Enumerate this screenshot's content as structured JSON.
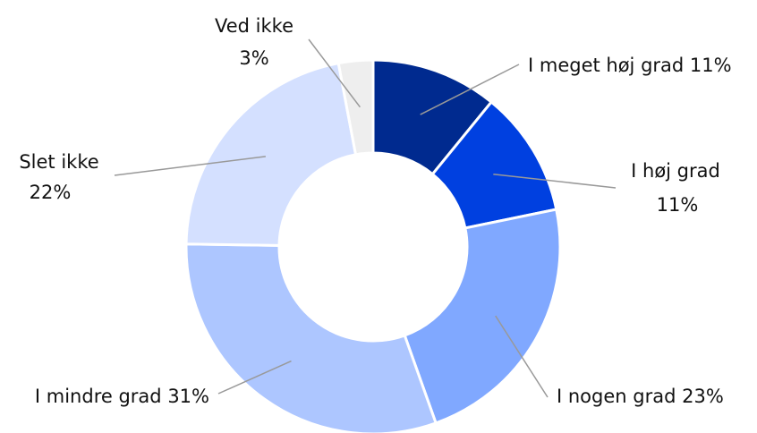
{
  "chart_data": {
    "type": "donut",
    "categories": [
      "I meget høj grad",
      "I høj grad",
      "I nogen grad",
      "I mindre grad",
      "Slet ikke",
      "Ved ikke"
    ],
    "values": [
      11,
      11,
      23,
      31,
      22,
      3
    ],
    "value_labels": [
      "11%",
      "11%",
      "23%",
      "31%",
      "22%",
      "3%"
    ],
    "colors": [
      "#002a8f",
      "#0040e0",
      "#80a8ff",
      "#adc6ff",
      "#d4e0ff",
      "#eeeeee"
    ]
  }
}
